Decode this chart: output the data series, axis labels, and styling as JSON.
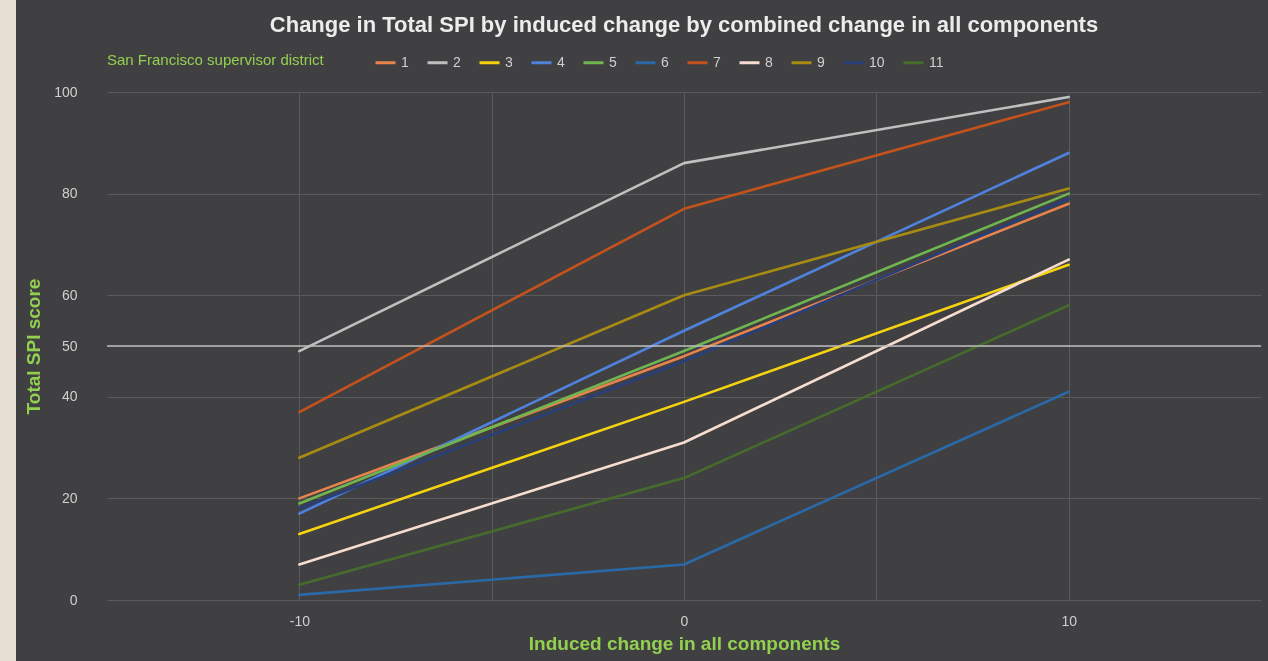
{
  "chart_data": {
    "type": "line",
    "title": "Change in Total SPI by induced change by combined change in all components",
    "xlabel": "Induced change in all components",
    "ylabel": "Total SPI score",
    "legend_title": "San Francisco supervisor district",
    "x": [
      -10,
      0,
      10
    ],
    "series": [
      {
        "name": "1",
        "color": "#e8834e",
        "values": [
          20,
          48,
          78
        ]
      },
      {
        "name": "2",
        "color": "#c0c0c0",
        "values": [
          49,
          86,
          99
        ]
      },
      {
        "name": "3",
        "color": "#f5d30f",
        "values": [
          13,
          39,
          66
        ]
      },
      {
        "name": "4",
        "color": "#4f82dc",
        "values": [
          17,
          53,
          88
        ]
      },
      {
        "name": "5",
        "color": "#6fb550",
        "values": [
          19,
          49,
          80
        ]
      },
      {
        "name": "6",
        "color": "#2a69a8",
        "values": [
          1,
          7,
          41
        ]
      },
      {
        "name": "7",
        "color": "#c4521c",
        "values": [
          37,
          77,
          98
        ]
      },
      {
        "name": "8",
        "color": "#f6ddd0",
        "values": [
          7,
          31,
          67
        ]
      },
      {
        "name": "9",
        "color": "#a88c12",
        "values": [
          28,
          60,
          81
        ]
      },
      {
        "name": "10",
        "color": "#283f7a",
        "values": [
          18,
          47,
          79
        ]
      },
      {
        "name": "11",
        "color": "#466c2c",
        "values": [
          3,
          24,
          58
        ]
      }
    ],
    "xlim": [
      -15,
      15
    ],
    "xticks": [
      -10,
      {
        "value": -5,
        "label": null
      },
      0,
      {
        "value": 5,
        "label": null
      },
      10
    ],
    "ylim": [
      0,
      100
    ],
    "yticks": [
      0,
      20,
      40,
      50,
      60,
      80,
      100
    ],
    "ref_lines": [
      {
        "axis": "y",
        "value": 50,
        "color": "#bdbdbd"
      }
    ],
    "grid": true,
    "legend": "top"
  }
}
